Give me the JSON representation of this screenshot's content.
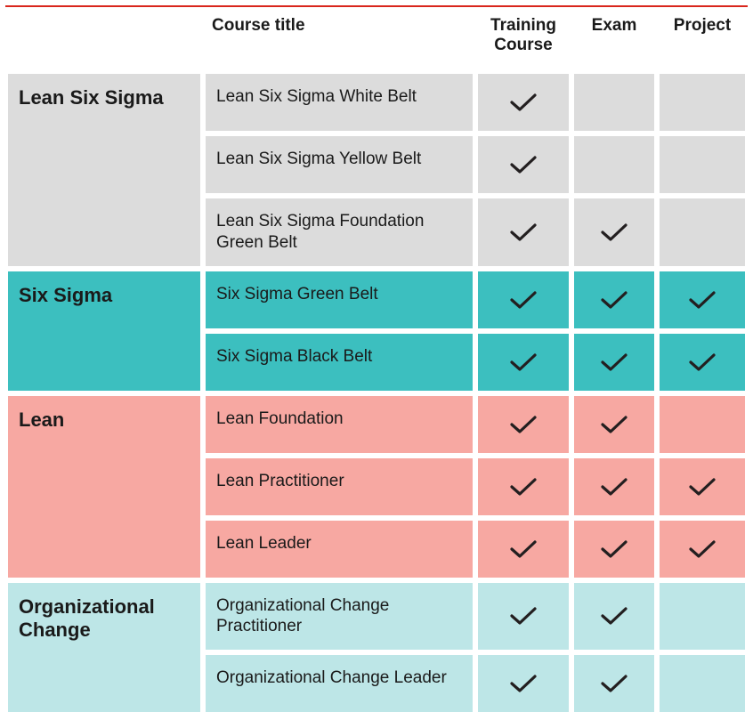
{
  "colors": {
    "rule": "#d9261c",
    "text": "#1a1a1a",
    "check_stroke": "#231f20",
    "groups": {
      "lean_six_sigma": "#dcdcdc",
      "six_sigma": "#3cbfbf",
      "lean": "#f7a8a2",
      "org_change": "#bde6e7"
    }
  },
  "headers": {
    "category_blank": "",
    "course_title": "Course title",
    "training_course": "Training Course",
    "exam": "Exam",
    "project": "Project"
  },
  "categories": [
    {
      "key": "lean_six_sigma",
      "label": "Lean Six Sigma",
      "rows": [
        {
          "title": "Lean Six Sigma White Belt",
          "training": true,
          "exam": false,
          "project": false
        },
        {
          "title": "Lean Six Sigma Yellow Belt",
          "training": true,
          "exam": false,
          "project": false
        },
        {
          "title": "Lean Six Sigma Foundation Green Belt",
          "training": true,
          "exam": true,
          "project": false
        }
      ]
    },
    {
      "key": "six_sigma",
      "label": "Six Sigma",
      "rows": [
        {
          "title": "Six Sigma Green Belt",
          "training": true,
          "exam": true,
          "project": true
        },
        {
          "title": "Six Sigma Black Belt",
          "training": true,
          "exam": true,
          "project": true
        }
      ]
    },
    {
      "key": "lean",
      "label": "Lean",
      "rows": [
        {
          "title": "Lean Foundation",
          "training": true,
          "exam": true,
          "project": false
        },
        {
          "title": "Lean Practitioner",
          "training": true,
          "exam": true,
          "project": true
        },
        {
          "title": "Lean Leader",
          "training": true,
          "exam": true,
          "project": true
        }
      ]
    },
    {
      "key": "org_change",
      "label": "Organizational Change",
      "rows": [
        {
          "title": "Organizational Change Practitioner",
          "training": true,
          "exam": true,
          "project": false
        },
        {
          "title": "Organizational Change Leader",
          "training": true,
          "exam": true,
          "project": false
        }
      ]
    }
  ]
}
